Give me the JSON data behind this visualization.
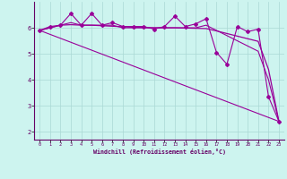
{
  "xlabel": "Windchill (Refroidissement éolien,°C)",
  "background_color": "#cdf4ef",
  "grid_color": "#aad8d4",
  "line_color": "#990099",
  "xlim": [
    -0.5,
    23.5
  ],
  "ylim": [
    1.7,
    7.0
  ],
  "yticks": [
    2,
    3,
    4,
    5,
    6
  ],
  "xticks": [
    0,
    1,
    2,
    3,
    4,
    5,
    6,
    7,
    8,
    9,
    10,
    11,
    12,
    13,
    14,
    15,
    16,
    17,
    18,
    19,
    20,
    21,
    22,
    23
  ],
  "series1_x": [
    0,
    1,
    2,
    3,
    4,
    5,
    6,
    7,
    8,
    9,
    10,
    11,
    12,
    13,
    14,
    15,
    16,
    17,
    18,
    19,
    20,
    21,
    22,
    23
  ],
  "series1_y": [
    5.9,
    6.05,
    6.1,
    6.55,
    6.1,
    6.55,
    6.1,
    6.2,
    6.05,
    6.05,
    6.05,
    5.95,
    6.05,
    6.45,
    6.05,
    6.15,
    6.35,
    5.05,
    4.6,
    6.05,
    5.85,
    5.95,
    3.35,
    2.4
  ],
  "series2_x": [
    0,
    1,
    2,
    3,
    4,
    5,
    6,
    7,
    8,
    9,
    10,
    11,
    12,
    13,
    14,
    15,
    16,
    17,
    18,
    19,
    20,
    21,
    22,
    23
  ],
  "series2_y": [
    5.9,
    6.0,
    6.1,
    6.2,
    6.1,
    6.1,
    6.1,
    6.1,
    6.0,
    6.0,
    6.0,
    6.0,
    6.0,
    6.0,
    6.0,
    6.0,
    6.1,
    5.9,
    5.7,
    5.5,
    5.3,
    5.1,
    4.0,
    2.4
  ],
  "series3_x": [
    0,
    23
  ],
  "series3_y": [
    5.9,
    2.4
  ],
  "series4_x": [
    0,
    1,
    2,
    3,
    4,
    5,
    6,
    7,
    8,
    9,
    10,
    11,
    12,
    13,
    14,
    15,
    16,
    17,
    18,
    19,
    20,
    21,
    22,
    23
  ],
  "series4_y": [
    5.9,
    6.0,
    6.1,
    6.12,
    6.1,
    6.1,
    6.08,
    6.06,
    6.04,
    6.02,
    6.01,
    6.0,
    6.0,
    6.0,
    5.99,
    5.98,
    5.97,
    5.88,
    5.78,
    5.68,
    5.58,
    5.48,
    4.4,
    2.4
  ]
}
